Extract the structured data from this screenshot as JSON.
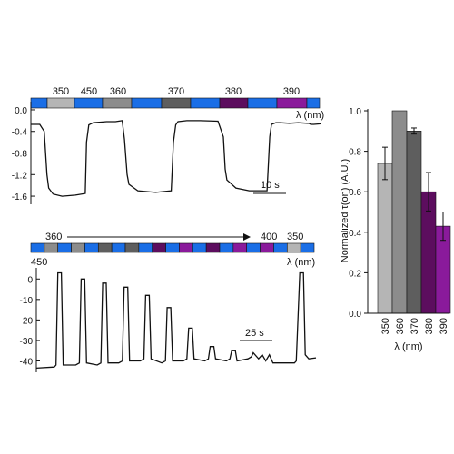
{
  "chart_data": [
    {
      "type": "line",
      "panel": "top",
      "xlabel": "",
      "ylabel": "",
      "ylim": [
        -1.7,
        0.05
      ],
      "yticks": [
        "0.0",
        "-0.4",
        "-0.8",
        "-1.2",
        "-1.6"
      ],
      "ytick_values": [
        0.0,
        -0.4,
        -0.8,
        -1.2,
        -1.6
      ],
      "scale_bar": "10 s",
      "wavelength_unit": "λ (nm)",
      "wavelength_labels": [
        "350",
        "450",
        "360",
        "370",
        "380",
        "390"
      ],
      "bar_colors": {
        "blue": "#1a6ee6",
        "uv350": "#b5b5b5",
        "uv360": "#8c8c8c",
        "uv370": "#5e5e5e",
        "uv380": "#5c0d5e",
        "uv390": "#8a1a9b"
      },
      "series": [
        {
          "x": [
            0,
            2,
            3,
            3.6,
            4,
            5,
            7,
            10,
            12.2,
            12.5,
            13,
            14,
            17,
            19,
            20.5,
            21,
            21.6,
            22,
            24,
            28,
            31.5,
            32,
            32.5,
            33,
            35,
            38,
            42,
            43.2,
            43.6,
            44,
            46,
            49,
            53,
            53.6,
            54,
            55,
            56,
            58,
            60,
            62,
            62.4,
            62.8,
            63.5,
            65
          ],
          "y": [
            -0.27,
            -0.27,
            -0.4,
            -1.2,
            -1.45,
            -1.56,
            -1.6,
            -1.58,
            -1.55,
            -0.6,
            -0.28,
            -0.24,
            -0.22,
            -0.22,
            -0.2,
            -0.55,
            -1.2,
            -1.38,
            -1.5,
            -1.53,
            -1.5,
            -0.6,
            -0.28,
            -0.22,
            -0.2,
            -0.2,
            -0.21,
            -0.5,
            -1.1,
            -1.3,
            -1.45,
            -1.5,
            -1.5,
            -0.5,
            -0.27,
            -0.24,
            -0.24,
            -0.25,
            -0.24,
            -0.25,
            -0.25,
            -0.27,
            -0.27,
            -0.26
          ]
        }
      ]
    },
    {
      "type": "line",
      "panel": "bottom",
      "xlabel": "",
      "ylabel": "",
      "ylim": [
        -46,
        5
      ],
      "yticks": [
        "0",
        "-10",
        "-20",
        "-30",
        "-40"
      ],
      "ytick_values": [
        0,
        -10,
        -20,
        -30,
        -40
      ],
      "scale_bar": "25 s",
      "wavelength_unit": "λ (nm)",
      "start_label": "450",
      "arrow_start_label": "360",
      "arrow_end_label": "400",
      "end_label": "350",
      "bar_colors": [
        "#1a6ee6",
        "#8c8c8c",
        "#1a6ee6",
        "#8c8c8c",
        "#1a6ee6",
        "#5e5e5e",
        "#1a6ee6",
        "#5e5e5e",
        "#1a6ee6",
        "#5c0d5e",
        "#1a6ee6",
        "#8a1a9b",
        "#1a6ee6",
        "#5c0d5e",
        "#1a6ee6",
        "#8a1a9b",
        "#1a6ee6",
        "#8a1a9b",
        "#1a6ee6",
        "#b5b5b5",
        "#1a6ee6"
      ],
      "series": [
        {
          "x": [
            0,
            10,
            11,
            12,
            14,
            15,
            22,
            24,
            25,
            27,
            28,
            34,
            36,
            37,
            39,
            40,
            46,
            48,
            49,
            51,
            52,
            58,
            60,
            61,
            63,
            64,
            70,
            72,
            73,
            75,
            76,
            82,
            84,
            85,
            87,
            88,
            94,
            96,
            97,
            99,
            100,
            106,
            108,
            109,
            111,
            112,
            118,
            120,
            121,
            124,
            126,
            128,
            130,
            132,
            144,
            145,
            147,
            149,
            150,
            152,
            156
          ],
          "y": [
            -43.5,
            -43,
            -42,
            3,
            3,
            -42,
            -42,
            -41,
            0,
            0,
            -41,
            -42,
            -41,
            -2,
            -2,
            -41,
            -41,
            -40,
            -4,
            -4,
            -40,
            -40,
            -39,
            -8,
            -8,
            -39,
            -41,
            -40,
            -14,
            -14,
            -40,
            -40,
            -39,
            -24,
            -24,
            -39,
            -40,
            -39,
            -33,
            -33,
            -39,
            -40,
            -39,
            -35,
            -35,
            -40,
            -39,
            -38,
            -36,
            -39,
            -37,
            -40,
            -37,
            -41,
            -41,
            -40,
            3,
            3,
            -37,
            -39,
            -38.5
          ]
        }
      ]
    },
    {
      "type": "bar",
      "panel": "right",
      "categories": [
        "350",
        "360",
        "370",
        "380",
        "390"
      ],
      "values": [
        0.74,
        1.0,
        0.9,
        0.6,
        0.43
      ],
      "errors": [
        0.08,
        0.0,
        0.015,
        0.095,
        0.07
      ],
      "colors": [
        "#b5b5b5",
        "#8c8c8c",
        "#5e5e5e",
        "#5c0d5e",
        "#8a1a9b"
      ],
      "xlabel": "λ (nm)",
      "ylabel": "Normalized τ(on) (A.U.)",
      "ylim": [
        0,
        1.05
      ],
      "yticks": [
        "0.0",
        "0.2",
        "0.4",
        "0.6",
        "0.8",
        "1.0"
      ],
      "ytick_values": [
        0.0,
        0.2,
        0.4,
        0.6,
        0.8,
        1.0
      ]
    }
  ]
}
